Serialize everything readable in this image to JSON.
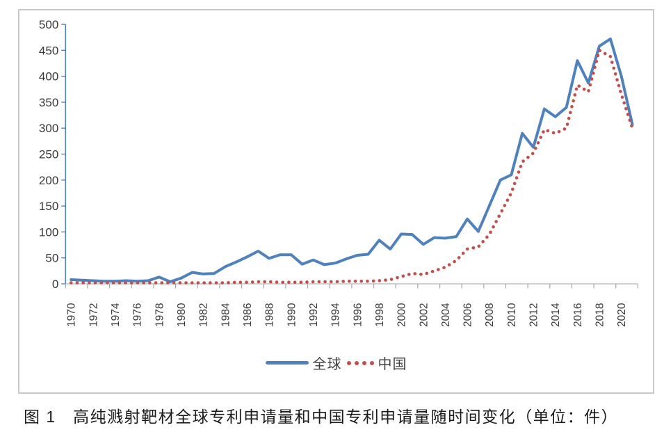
{
  "figure": {
    "caption": "图 1　高纯溅射靶材全球专利申请量和中国专利申请量随时间变化（单位：件）"
  },
  "legend": {
    "series1": "全球",
    "series2": "中国"
  },
  "colors": {
    "global_line": "#4f81bd",
    "china_line": "#c0504d",
    "y_axis": "#4f81bd",
    "x_axis": "#bfbfbf",
    "x_tick": "#a6a6a6",
    "frame": "#c9c9c9",
    "tick_label": "#3a3a3a"
  },
  "chart_data": {
    "type": "line",
    "title": "",
    "xlabel": "",
    "ylabel": "",
    "x": [
      1970,
      1971,
      1972,
      1973,
      1974,
      1975,
      1976,
      1977,
      1978,
      1979,
      1980,
      1981,
      1982,
      1983,
      1984,
      1985,
      1986,
      1987,
      1988,
      1989,
      1990,
      1991,
      1992,
      1993,
      1994,
      1995,
      1996,
      1997,
      1998,
      1999,
      2000,
      2001,
      2002,
      2003,
      2004,
      2005,
      2006,
      2007,
      2008,
      2009,
      2010,
      2011,
      2012,
      2013,
      2014,
      2015,
      2016,
      2017,
      2018,
      2019,
      2020,
      2021
    ],
    "series": [
      {
        "name": "全球",
        "style": "solid",
        "color": "#4f81bd",
        "values": [
          8,
          7,
          6,
          5,
          5,
          6,
          5,
          6,
          13,
          4,
          11,
          22,
          19,
          20,
          33,
          42,
          52,
          63,
          49,
          56,
          56,
          38,
          46,
          37,
          40,
          48,
          55,
          57,
          84,
          67,
          96,
          95,
          76,
          89,
          88,
          91,
          125,
          101,
          150,
          200,
          210,
          290,
          263,
          337,
          322,
          340,
          430,
          387,
          458,
          472,
          400,
          307
        ]
      },
      {
        "name": "中国",
        "style": "dotted",
        "color": "#c0504d",
        "values": [
          2,
          2,
          2,
          2,
          2,
          2,
          2,
          2,
          2,
          2,
          2,
          2,
          2,
          2,
          2,
          3,
          3,
          4,
          4,
          3,
          3,
          3,
          4,
          4,
          4,
          5,
          5,
          5,
          6,
          8,
          14,
          20,
          18,
          25,
          32,
          45,
          67,
          71,
          95,
          135,
          175,
          235,
          252,
          297,
          290,
          300,
          383,
          370,
          450,
          438,
          365,
          300
        ]
      }
    ],
    "ylim": [
      0,
      500
    ],
    "ytick_interval": 50,
    "ytick_labels": [
      "0",
      "50",
      "100",
      "150",
      "200",
      "250",
      "300",
      "350",
      "400",
      "450",
      "500"
    ],
    "xtick_labels": [
      "1970",
      "1972",
      "1974",
      "1976",
      "1978",
      "1980",
      "1982",
      "1984",
      "1986",
      "1988",
      "1990",
      "1992",
      "1994",
      "1996",
      "1998",
      "2000",
      "2002",
      "2004",
      "2006",
      "2008",
      "2010",
      "2012",
      "2014",
      "2016",
      "2018",
      "2020"
    ],
    "grid": false,
    "legend_position": "bottom"
  }
}
